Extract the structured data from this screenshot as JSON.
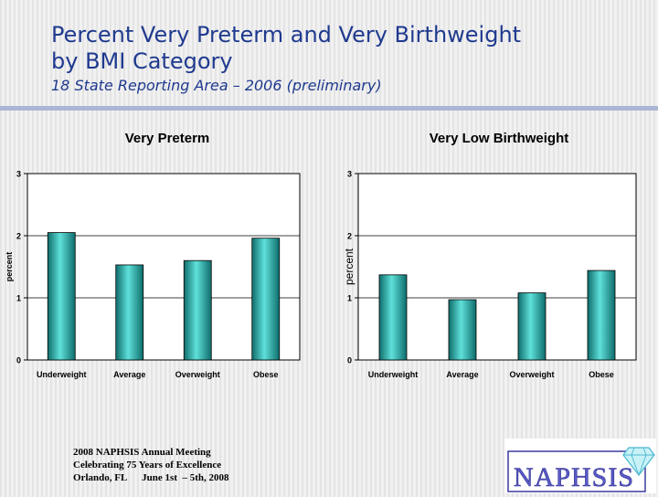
{
  "slide": {
    "title_line1": "Percent Very Preterm and Very Birthweight",
    "title_line2": "by BMI Category",
    "subtitle": "18 State Reporting Area – 2006 (preliminary)"
  },
  "colors": {
    "title": "#1f3a8f",
    "bar": "#1fa9a5",
    "bar_light": "#5fe0da",
    "bar_dark": "#0e6d6b",
    "rule": "#aab6d3"
  },
  "chart_data": [
    {
      "type": "bar",
      "title": "Very Preterm",
      "ylabel": "percent",
      "ylim": [
        0,
        3
      ],
      "yticks": [
        "0",
        "1",
        "2",
        "3"
      ],
      "categories": [
        "Underweight",
        "Average",
        "Overweight",
        "Obese"
      ],
      "values": [
        2.05,
        1.53,
        1.6,
        1.96
      ],
      "grid": true
    },
    {
      "type": "bar",
      "title": "Very Low Birthweight",
      "ylabel": "percent",
      "ylim": [
        0,
        3
      ],
      "yticks": [
        "0",
        "1",
        "2",
        "3"
      ],
      "categories": [
        "Underweight",
        "Average",
        "Overweight",
        "Obese"
      ],
      "values": [
        1.37,
        0.97,
        1.08,
        1.44
      ],
      "grid": true
    }
  ],
  "footer": {
    "line1": "2008 NAPHSIS Annual Meeting",
    "line2": "Celebrating 75 Years of Excellence",
    "line3": "Orlando, FL      June 1st  – 5th, 2008"
  },
  "logo": {
    "text": "NAPHSIS",
    "icon": "diamond-icon"
  }
}
